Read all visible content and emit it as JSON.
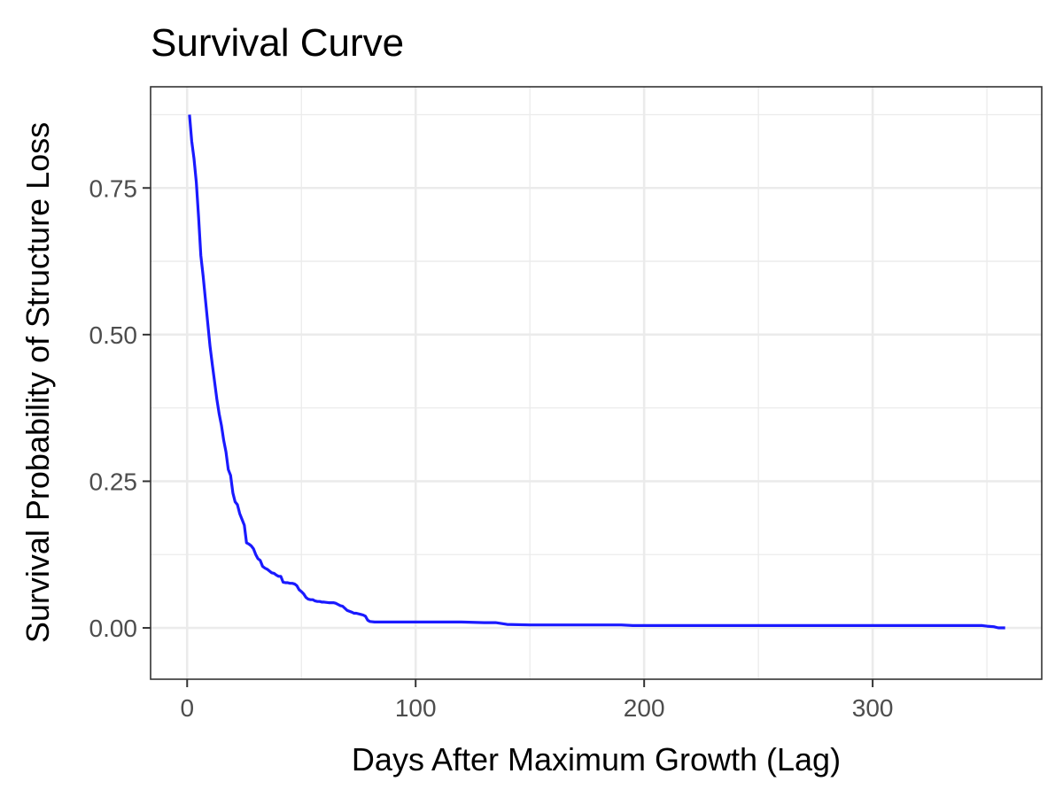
{
  "chart_data": {
    "type": "line",
    "title": "Survival Curve",
    "xlabel": "Days After Maximum Growth (Lag)",
    "ylabel": "Survival Probability of Structure Loss",
    "xlim": [
      -16,
      374
    ],
    "ylim": [
      -0.0875,
      0.9225
    ],
    "x_ticks": [
      0,
      100,
      200,
      300
    ],
    "x_tick_labels": [
      "0",
      "100",
      "200",
      "300"
    ],
    "y_ticks": [
      0,
      0.25,
      0.5,
      0.75
    ],
    "y_tick_labels": [
      "0.00",
      "0.25",
      "0.50",
      "0.75"
    ],
    "grid": true,
    "legend": "none",
    "series": [
      {
        "color": "#1a1aff",
        "x": [
          1,
          2,
          3,
          4,
          5,
          6,
          7,
          8,
          9,
          10,
          11,
          12,
          13,
          14,
          15,
          16,
          17,
          18,
          19,
          20,
          21,
          22,
          23,
          24,
          25,
          26,
          27,
          28,
          29,
          30,
          31,
          32,
          33,
          34,
          35,
          36,
          37,
          38,
          39,
          40,
          41,
          42,
          43,
          44,
          45,
          46,
          47,
          48,
          49,
          50,
          51,
          52,
          53,
          54,
          55,
          56,
          57,
          58,
          59,
          60,
          62,
          64,
          65,
          66,
          67,
          68,
          70,
          72,
          73,
          74,
          76,
          77,
          78,
          79,
          80,
          82,
          90,
          100,
          110,
          120,
          130,
          135,
          140,
          150,
          170,
          190,
          195,
          250,
          300,
          340,
          348,
          350,
          353,
          355,
          358
        ],
        "y": [
          0.875,
          0.83,
          0.8,
          0.76,
          0.7,
          0.635,
          0.6,
          0.56,
          0.52,
          0.48,
          0.45,
          0.42,
          0.39,
          0.365,
          0.345,
          0.32,
          0.3,
          0.27,
          0.26,
          0.23,
          0.215,
          0.21,
          0.195,
          0.185,
          0.175,
          0.145,
          0.143,
          0.14,
          0.135,
          0.125,
          0.118,
          0.115,
          0.105,
          0.102,
          0.1,
          0.097,
          0.094,
          0.093,
          0.09,
          0.088,
          0.088,
          0.078,
          0.077,
          0.077,
          0.076,
          0.076,
          0.075,
          0.072,
          0.065,
          0.062,
          0.058,
          0.052,
          0.049,
          0.048,
          0.048,
          0.046,
          0.045,
          0.045,
          0.044,
          0.044,
          0.043,
          0.043,
          0.042,
          0.04,
          0.038,
          0.037,
          0.03,
          0.027,
          0.025,
          0.025,
          0.023,
          0.022,
          0.02,
          0.013,
          0.011,
          0.01,
          0.01,
          0.01,
          0.01,
          0.01,
          0.009,
          0.009,
          0.006,
          0.005,
          0.005,
          0.005,
          0.004,
          0.004,
          0.004,
          0.004,
          0.004,
          0.003,
          0.002,
          0.0,
          0.0
        ]
      }
    ]
  }
}
